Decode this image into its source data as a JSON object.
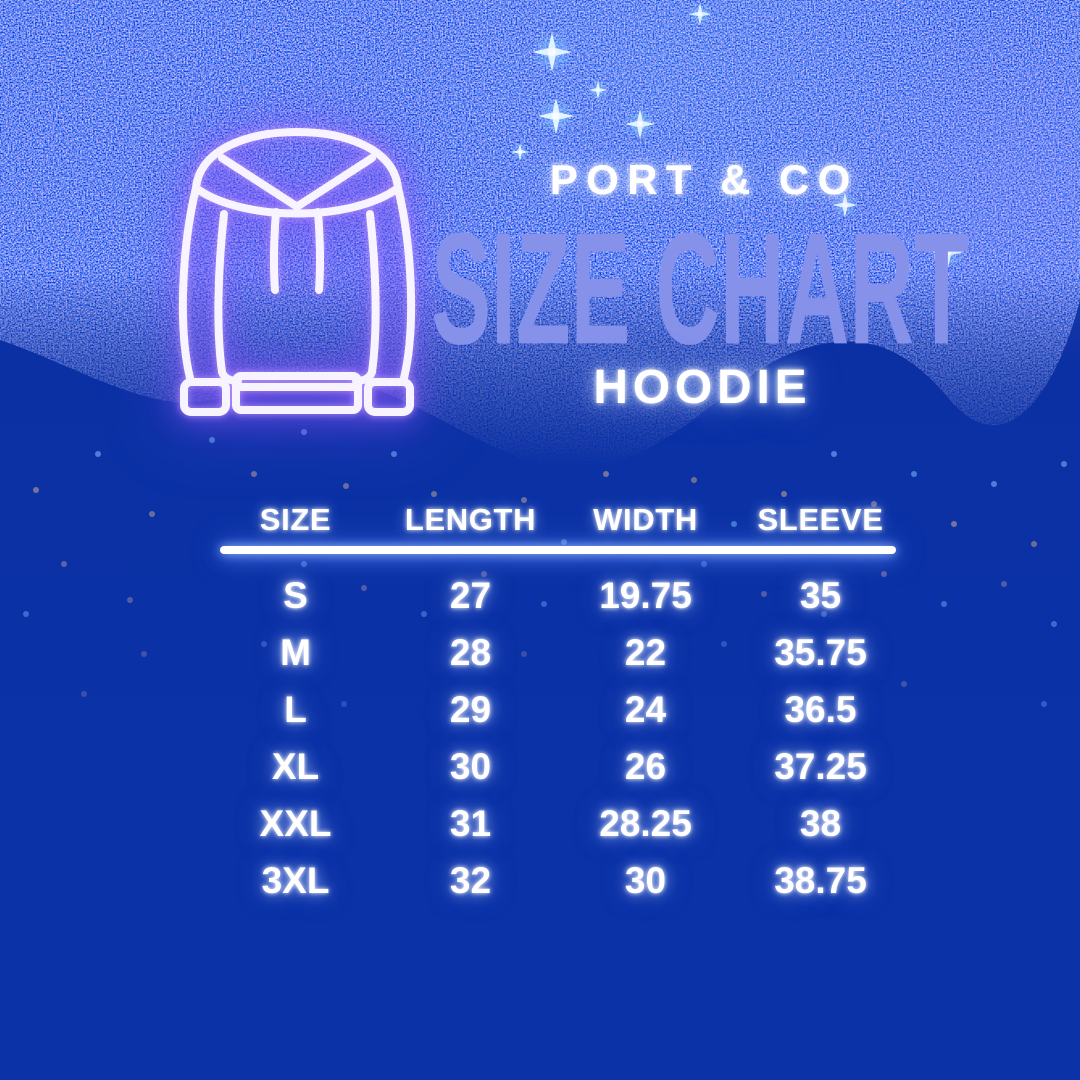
{
  "header": {
    "brand": "PORT & CO",
    "title": "SIZE CHART",
    "product": "HOODIE",
    "icon": "hoodie-neon-icon"
  },
  "colors": {
    "background": "#0b31a5",
    "title_accent": "#8692ea",
    "neon_glow": "#8f6bff",
    "text": "#ffffff",
    "divider": "#ffffff"
  },
  "chart_data": {
    "type": "table",
    "title": "SIZE CHART",
    "subtitle": "HOODIE",
    "brand": "PORT & CO",
    "columns": [
      "SIZE",
      "LENGTH",
      "WIDTH",
      "SLEEVE"
    ],
    "rows": [
      [
        "S",
        "27",
        "19.75",
        "35"
      ],
      [
        "M",
        "28",
        "22",
        "35.75"
      ],
      [
        "L",
        "29",
        "24",
        "36.5"
      ],
      [
        "XL",
        "30",
        "26",
        "37.25"
      ],
      [
        "XXL",
        "31",
        "28.25",
        "38"
      ],
      [
        "3XL",
        "32",
        "30",
        "38.75"
      ]
    ]
  }
}
